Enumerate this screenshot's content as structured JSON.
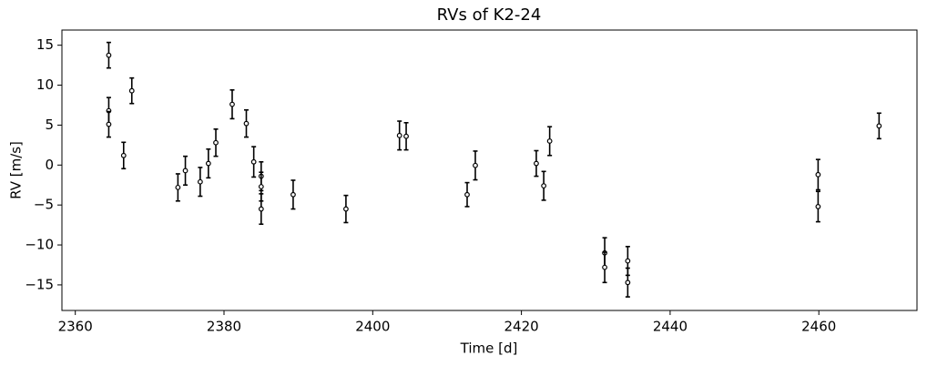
{
  "chart_data": {
    "type": "scatter",
    "title": "RVs of K2-24",
    "xlabel": "Time [d]",
    "ylabel": "RV [m/s]",
    "x": [
      2364.5,
      2364.5,
      2364.5,
      2366.5,
      2367.6,
      2373.8,
      2374.8,
      2376.8,
      2377.9,
      2378.9,
      2381.1,
      2383.0,
      2384.0,
      2385.0,
      2385.0,
      2385.0,
      2389.3,
      2396.4,
      2403.6,
      2404.5,
      2412.7,
      2413.8,
      2422.0,
      2423.0,
      2423.8,
      2431.2,
      2431.2,
      2434.3,
      2434.3,
      2459.9,
      2459.9,
      2468.1
    ],
    "series": [
      {
        "color": "#000000",
        "values": [
          13.75,
          6.8,
          5.1,
          1.2,
          9.3,
          -2.8,
          -0.7,
          -2.1,
          0.2,
          2.8,
          7.6,
          5.2,
          0.4,
          -1.4,
          -2.7,
          -5.5,
          -3.7,
          -5.5,
          3.7,
          3.6,
          -3.7,
          -0.05,
          0.2,
          -2.6,
          3.0,
          -11.0,
          -12.8,
          -12.0,
          -14.7,
          -1.2,
          -5.2,
          4.9
        ],
        "errors": [
          1.6,
          1.65,
          1.6,
          1.65,
          1.6,
          1.7,
          1.8,
          1.8,
          1.8,
          1.7,
          1.8,
          1.7,
          1.9,
          1.8,
          1.8,
          1.9,
          1.8,
          1.7,
          1.8,
          1.7,
          1.5,
          1.8,
          1.6,
          1.8,
          1.8,
          1.9,
          1.9,
          1.8,
          1.8,
          1.9,
          1.9,
          1.6
        ]
      }
    ],
    "xlim": [
      2358.2,
      2473.2
    ],
    "ylim": [
      -18.2,
      16.9
    ],
    "xticks": [
      2360,
      2380,
      2400,
      2420,
      2440,
      2460
    ],
    "yticks": [
      {
        "value": -15,
        "label": "−15"
      },
      {
        "value": -10,
        "label": "−10"
      },
      {
        "value": -5,
        "label": "−5"
      },
      0,
      5,
      10,
      15
    ],
    "grid": false
  }
}
